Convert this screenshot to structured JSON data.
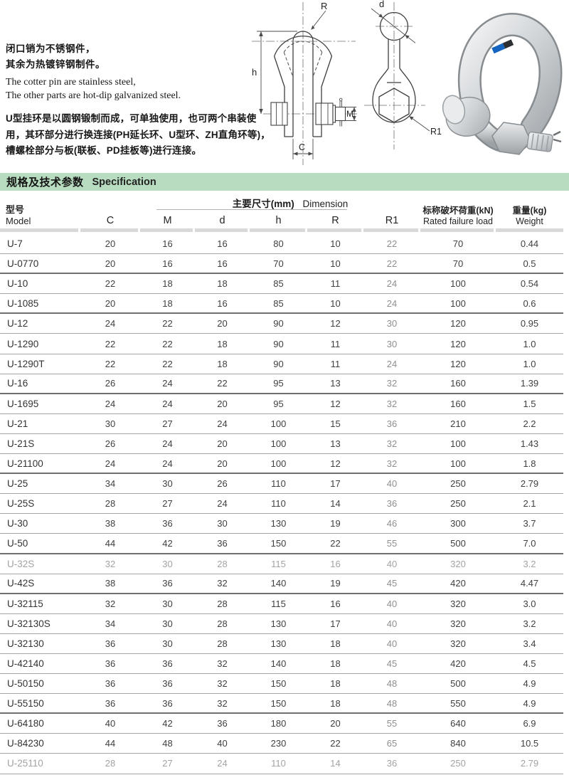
{
  "intro": {
    "cn_line1": "闭口销为不锈钢件，",
    "cn_line2": "其余为热镀锌钢制件。",
    "en_line1": "The cotter pin are stainless steel,",
    "en_line2": "The other parts are hot-dip galvanized steel.",
    "desc": "U型挂环是以圆钢锻制而成，可单独使用，也可两个串装使用，其环部分进行换连接(PH延长环、U型环、ZH直角环等)，槽螺栓部分与板(联板、PD挂板等)进行连接。"
  },
  "drawings": {
    "labels": {
      "R": "R",
      "h": "h",
      "C": "C",
      "M": "M",
      "d": "d",
      "R1": "R1"
    }
  },
  "section_bar": {
    "title_cn": "规格及技术参数",
    "title_en": "Specification",
    "bg": "#b7dcc0"
  },
  "table": {
    "model_header": {
      "cn": "型号",
      "en": "Model"
    },
    "dimension_group": {
      "cn": "主要尺寸(mm)",
      "en": "Dimension"
    },
    "dim_columns": [
      "C",
      "M",
      "d",
      "h",
      "R",
      "R1"
    ],
    "load_header": {
      "cn": "标称破坏荷重(kN)",
      "en": "Rated failure load"
    },
    "weight_header": {
      "cn": "重量(kg)",
      "en": "Weight"
    },
    "rows": [
      {
        "model": "U-7",
        "c": "20",
        "m": "16",
        "d": "16",
        "h": "80",
        "r": "10",
        "r1": "22",
        "load": "70",
        "weight": "0.44"
      },
      {
        "model": "U-0770",
        "c": "20",
        "m": "16",
        "d": "16",
        "h": "70",
        "r": "10",
        "r1": "22",
        "load": "70",
        "weight": "0.5",
        "thick": true
      },
      {
        "model": "U-10",
        "c": "22",
        "m": "18",
        "d": "18",
        "h": "85",
        "r": "11",
        "r1": "24",
        "load": "100",
        "weight": "0.54"
      },
      {
        "model": "U-1085",
        "c": "20",
        "m": "18",
        "d": "16",
        "h": "85",
        "r": "10",
        "r1": "24",
        "load": "100",
        "weight": "0.6",
        "thick": true
      },
      {
        "model": "U-12",
        "c": "24",
        "m": "22",
        "d": "20",
        "h": "90",
        "r": "12",
        "r1": "30",
        "load": "120",
        "weight": "0.95"
      },
      {
        "model": "U-1290",
        "c": "22",
        "m": "22",
        "d": "18",
        "h": "90",
        "r": "11",
        "r1": "30",
        "load": "120",
        "weight": "1.0"
      },
      {
        "model": "U-1290T",
        "c": "22",
        "m": "22",
        "d": "18",
        "h": "90",
        "r": "11",
        "r1": "24",
        "load": "120",
        "weight": "1.0"
      },
      {
        "model": "U-16",
        "c": "26",
        "m": "24",
        "d": "22",
        "h": "95",
        "r": "13",
        "r1": "32",
        "load": "160",
        "weight": "1.39",
        "thick": true
      },
      {
        "model": "U-1695",
        "c": "24",
        "m": "24",
        "d": "20",
        "h": "95",
        "r": "12",
        "r1": "32",
        "load": "160",
        "weight": "1.5"
      },
      {
        "model": "U-21",
        "c": "30",
        "m": "27",
        "d": "24",
        "h": "100",
        "r": "15",
        "r1": "36",
        "load": "210",
        "weight": "2.2"
      },
      {
        "model": "U-21S",
        "c": "26",
        "m": "24",
        "d": "20",
        "h": "100",
        "r": "13",
        "r1": "32",
        "load": "100",
        "weight": "1.43"
      },
      {
        "model": "U-21100",
        "c": "24",
        "m": "24",
        "d": "20",
        "h": "100",
        "r": "12",
        "r1": "32",
        "load": "100",
        "weight": "1.8",
        "thick": true
      },
      {
        "model": "U-25",
        "c": "34",
        "m": "30",
        "d": "26",
        "h": "110",
        "r": "17",
        "r1": "40",
        "load": "250",
        "weight": "2.79"
      },
      {
        "model": "U-25S",
        "c": "28",
        "m": "27",
        "d": "24",
        "h": "110",
        "r": "14",
        "r1": "36",
        "load": "250",
        "weight": "2.1"
      },
      {
        "model": "U-30",
        "c": "38",
        "m": "36",
        "d": "30",
        "h": "130",
        "r": "19",
        "r1": "46",
        "load": "300",
        "weight": "3.7"
      },
      {
        "model": "U-50",
        "c": "44",
        "m": "42",
        "d": "36",
        "h": "150",
        "r": "22",
        "r1": "55",
        "load": "500",
        "weight": "7.0",
        "thick": true
      },
      {
        "model": "U-32S",
        "c": "32",
        "m": "30",
        "d": "28",
        "h": "115",
        "r": "16",
        "r1": "40",
        "load": "320",
        "weight": "3.2",
        "muted": true
      },
      {
        "model": "U-42S",
        "c": "38",
        "m": "36",
        "d": "32",
        "h": "140",
        "r": "19",
        "r1": "45",
        "load": "420",
        "weight": "4.47",
        "thick": true
      },
      {
        "model": "U-32115",
        "c": "32",
        "m": "30",
        "d": "28",
        "h": "115",
        "r": "16",
        "r1": "40",
        "load": "320",
        "weight": "3.0"
      },
      {
        "model": "U-32130S",
        "c": "34",
        "m": "30",
        "d": "28",
        "h": "130",
        "r": "17",
        "r1": "40",
        "load": "320",
        "weight": "3.2"
      },
      {
        "model": "U-32130",
        "c": "36",
        "m": "30",
        "d": "28",
        "h": "130",
        "r": "18",
        "r1": "40",
        "load": "320",
        "weight": "3.4"
      },
      {
        "model": "U-42140",
        "c": "36",
        "m": "36",
        "d": "32",
        "h": "140",
        "r": "18",
        "r1": "45",
        "load": "420",
        "weight": "4.5"
      },
      {
        "model": "U-50150",
        "c": "36",
        "m": "36",
        "d": "32",
        "h": "150",
        "r": "18",
        "r1": "48",
        "load": "500",
        "weight": "4.9"
      },
      {
        "model": "U-55150",
        "c": "36",
        "m": "36",
        "d": "32",
        "h": "150",
        "r": "18",
        "r1": "48",
        "load": "550",
        "weight": "4.9",
        "thick": true
      },
      {
        "model": "U-64180",
        "c": "40",
        "m": "42",
        "d": "36",
        "h": "180",
        "r": "20",
        "r1": "55",
        "load": "640",
        "weight": "6.9"
      },
      {
        "model": "U-84230",
        "c": "44",
        "m": "48",
        "d": "40",
        "h": "230",
        "r": "22",
        "r1": "65",
        "load": "840",
        "weight": "10.5"
      },
      {
        "model": "U-25110",
        "c": "28",
        "m": "27",
        "d": "24",
        "h": "110",
        "r": "14",
        "r1": "36",
        "load": "250",
        "weight": "2.79",
        "muted": true
      }
    ]
  }
}
